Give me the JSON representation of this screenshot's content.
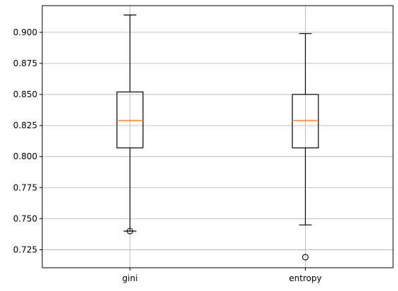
{
  "chart_data": {
    "type": "box",
    "title": "",
    "xlabel": "",
    "ylabel": "",
    "categories": [
      "gini",
      "entropy"
    ],
    "ylim": [
      0.7105,
      0.9215
    ],
    "yticks": [
      0.725,
      0.75,
      0.775,
      0.8,
      0.825,
      0.85,
      0.875,
      0.9
    ],
    "ytick_labels": [
      "0.725",
      "0.750",
      "0.775",
      "0.800",
      "0.825",
      "0.850",
      "0.875",
      "0.900"
    ],
    "grid": true,
    "series": [
      {
        "category": "gini",
        "whisker_low": 0.74,
        "q1": 0.807,
        "median": 0.829,
        "q3": 0.852,
        "whisker_high": 0.914,
        "outliers": [
          0.74
        ]
      },
      {
        "category": "entropy",
        "whisker_low": 0.745,
        "q1": 0.807,
        "median": 0.829,
        "q3": 0.85,
        "whisker_high": 0.899,
        "outliers": [
          0.719
        ]
      }
    ],
    "colors": {
      "box": "#000000",
      "median": "#ff7f0e",
      "grid": "#b0b0b0"
    }
  }
}
